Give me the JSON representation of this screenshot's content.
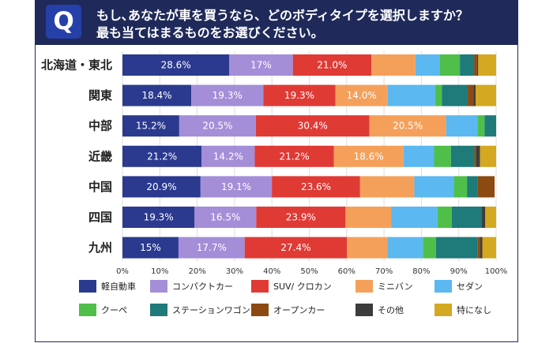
{
  "question": {
    "badge": "Q",
    "line1": "もし､あなたが車を買うなら、どのボディタイプを選択しますか？",
    "line2": "最も当てはまるものをお選びください。"
  },
  "chart_data": {
    "type": "bar",
    "orientation": "horizontal",
    "stacked": true,
    "categories": [
      "北海道・東北",
      "関東",
      "中部",
      "近畿",
      "中国",
      "四国",
      "九州"
    ],
    "xlim": [
      0,
      100
    ],
    "xticks": [
      "0%",
      "10%",
      "20%",
      "30%",
      "40%",
      "50%",
      "60%",
      "70%",
      "80%",
      "90%",
      "100%"
    ],
    "grid": "vertical",
    "legend_position": "bottom",
    "series": [
      {
        "name": "軽自動車",
        "color": "#2b3a8f",
        "values": [
          28.6,
          18.4,
          15.2,
          21.2,
          20.9,
          19.3,
          15.0
        ],
        "labels": [
          "28.6%",
          "18.4%",
          "15.2%",
          "21.2%",
          "20.9%",
          "19.3%",
          "15%"
        ]
      },
      {
        "name": "コンパクトカー",
        "color": "#a48ed8",
        "values": [
          17.0,
          19.3,
          20.5,
          14.2,
          19.1,
          16.5,
          17.7
        ],
        "labels": [
          "17%",
          "19.3%",
          "20.5%",
          "14.2%",
          "19.1%",
          "16.5%",
          "17.7%"
        ]
      },
      {
        "name": "SUV/ クロカン",
        "color": "#e03a35",
        "values": [
          21.0,
          19.3,
          30.4,
          21.2,
          23.6,
          23.9,
          27.4
        ],
        "labels": [
          "21.0%",
          "19.3%",
          "30.4%",
          "21.2%",
          "23.6%",
          "23.9%",
          "27.4%"
        ]
      },
      {
        "name": "ミニバン",
        "color": "#f5a05a",
        "values": [
          11.8,
          14.0,
          20.5,
          18.6,
          14.5,
          12.2,
          10.8
        ],
        "labels": [
          "",
          "14.0%",
          "20.5%",
          "18.6%",
          "",
          "",
          ""
        ]
      },
      {
        "name": "セダン",
        "color": "#5bb8f0",
        "values": [
          6.5,
          12.7,
          8.4,
          8.2,
          10.6,
          12.4,
          9.5
        ],
        "labels": [
          "",
          "",
          "",
          "",
          "",
          "",
          ""
        ]
      },
      {
        "name": "クーペ",
        "color": "#4fbf4a",
        "values": [
          5.4,
          1.8,
          1.9,
          4.5,
          3.5,
          3.8,
          3.5
        ],
        "labels": [
          "",
          "",
          "",
          "",
          "",
          "",
          ""
        ]
      },
      {
        "name": "ステーションワゴン",
        "color": "#1f7a7a",
        "values": [
          3.8,
          6.9,
          3.6,
          6.3,
          2.8,
          8.1,
          11.2
        ],
        "labels": [
          "",
          "",
          "",
          "",
          "",
          "",
          ""
        ]
      },
      {
        "name": "オープンカー",
        "color": "#8a4a12",
        "values": [
          0.8,
          1.5,
          0.0,
          0.5,
          4.6,
          0.0,
          0.6
        ],
        "labels": [
          "",
          "",
          "",
          "",
          "",
          "",
          ""
        ]
      },
      {
        "name": "その他",
        "color": "#3c3c3c",
        "values": [
          0.3,
          0.6,
          0.0,
          1.0,
          0.0,
          0.9,
          0.6
        ],
        "labels": [
          "",
          "",
          "",
          "",
          "",
          "",
          ""
        ]
      },
      {
        "name": "特になし",
        "color": "#d4a820",
        "values": [
          5.1,
          5.5,
          0.0,
          4.3,
          0.0,
          3.8,
          3.7
        ],
        "labels": [
          "",
          "",
          "",
          "",
          "",
          "",
          ""
        ]
      }
    ]
  }
}
